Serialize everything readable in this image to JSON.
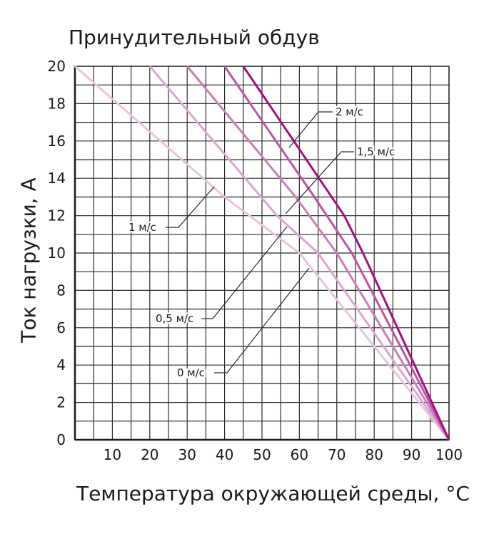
{
  "chart_data": {
    "type": "line",
    "title": "Принудительный обдув",
    "xlabel": "Температура окружающей среды, °C",
    "ylabel": "Ток нагрузки, А",
    "xlim": [
      0,
      100
    ],
    "ylim": [
      0,
      20
    ],
    "x_ticks": [
      "10",
      "20",
      "30",
      "40",
      "50",
      "60",
      "70",
      "80",
      "90",
      "100"
    ],
    "y_ticks": [
      "0",
      "2",
      "4",
      "6",
      "8",
      "10",
      "12",
      "14",
      "16",
      "18",
      "20"
    ],
    "grid": true,
    "series": [
      {
        "name": "0 м/с",
        "color": "#e8c4de",
        "points": [
          [
            0,
            20
          ],
          [
            40,
            13
          ],
          [
            60,
            10
          ],
          [
            100,
            0
          ]
        ]
      },
      {
        "name": "0,5 м/с",
        "color": "#dba7cf",
        "points": [
          [
            20,
            20
          ],
          [
            54,
            12
          ],
          [
            65,
            10
          ],
          [
            100,
            0
          ]
        ]
      },
      {
        "name": "1 м/с",
        "color": "#cb7eba",
        "points": [
          [
            30,
            20
          ],
          [
            59,
            13
          ],
          [
            70,
            10
          ],
          [
            100,
            0
          ]
        ]
      },
      {
        "name": "1,5 м/с",
        "color": "#bb55a4",
        "points": [
          [
            40,
            20
          ],
          [
            64,
            13
          ],
          [
            74,
            10
          ],
          [
            100,
            0
          ]
        ]
      },
      {
        "name": "2 м/с",
        "color": "#a0127c",
        "points": [
          [
            45,
            20
          ],
          [
            72,
            12
          ],
          [
            77,
            10
          ],
          [
            100,
            0
          ]
        ]
      }
    ],
    "annotations": [
      {
        "text": "2 м/с",
        "series": "2 м/с"
      },
      {
        "text": "1,5 м/с",
        "series": "1,5 м/с"
      },
      {
        "text": "1 м/с",
        "series": "1 м/с"
      },
      {
        "text": "0,5 м/с",
        "series": "0,5 м/с"
      },
      {
        "text": "0 м/с",
        "series": "0 м/с"
      }
    ]
  }
}
